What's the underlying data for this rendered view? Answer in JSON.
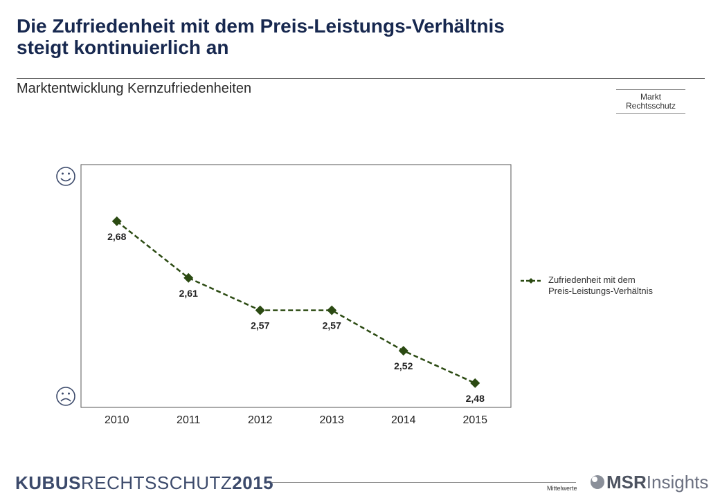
{
  "header": {
    "title_line1": "Die Zufriedenheit mit dem Preis-Leistungs-Verhältnis",
    "title_line2": "steigt kontinuierlich an",
    "subtitle": "Marktentwicklung Kernzufriedenheiten"
  },
  "badge": {
    "line1": "Markt",
    "line2": "Rechtsschutz"
  },
  "chart_data": {
    "type": "line",
    "categories": [
      "2010",
      "2011",
      "2012",
      "2013",
      "2014",
      "2015"
    ],
    "series": [
      {
        "name": "Zufriedenheit mit dem Preis-Leistungs-Verhältnis",
        "values": [
          2.68,
          2.61,
          2.57,
          2.57,
          2.52,
          2.48
        ],
        "labels": [
          "2,68",
          "2,61",
          "2,57",
          "2,57",
          "2,52",
          "2,48"
        ],
        "color": "#2b4a12",
        "line_style": "dashed",
        "marker": "diamond"
      }
    ],
    "ylim": [
      2.75,
      2.45
    ],
    "y_axis_reversed": true,
    "y_axis_icons": {
      "top": "happy-face-icon",
      "bottom": "sad-face-icon"
    },
    "grid": false,
    "legend_position": "right",
    "legend_labels": [
      "Zufriedenheit mit dem",
      "Preis-Leistungs-Verhältnis"
    ]
  },
  "footer": {
    "brand_part1": "KUBUS",
    "brand_part2": "RECHTSSCHUTZ",
    "brand_part3": "2015",
    "note": "Mittelwerte",
    "logo_part1": "MSR",
    "logo_part2": "Insights"
  },
  "colors": {
    "title": "#17284f",
    "series": "#2b4a12",
    "face_icons": "#3c4a6b"
  }
}
